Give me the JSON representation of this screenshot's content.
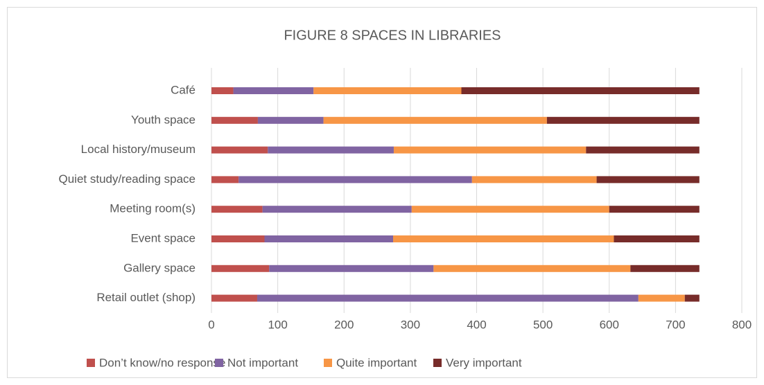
{
  "chart_data": {
    "type": "bar",
    "orientation": "horizontal",
    "stacked": true,
    "title": "FIGURE 8  SPACES IN LIBRARIES",
    "categories": [
      "Café",
      "Youth space",
      "Local history/museum",
      "Quiet study/reading space",
      "Meeting room(s)",
      "Event space",
      "Gallery space",
      "Retail outlet (shop)"
    ],
    "series": [
      {
        "name": "Don’t know/no response",
        "color": "#c0504d",
        "values": [
          33,
          70,
          85,
          41,
          77,
          80,
          87,
          69
        ]
      },
      {
        "name": "Not important",
        "color": "#8064a2",
        "values": [
          121,
          99,
          190,
          352,
          225,
          194,
          248,
          575
        ]
      },
      {
        "name": "Quite important",
        "color": "#f79646",
        "values": [
          223,
          337,
          290,
          188,
          298,
          333,
          297,
          70
        ]
      },
      {
        "name": "Very important",
        "color": "#772c2a",
        "values": [
          359,
          230,
          171,
          155,
          136,
          129,
          104,
          22
        ]
      }
    ],
    "xlim": [
      0,
      800
    ],
    "xticks": [
      0,
      100,
      200,
      300,
      400,
      500,
      600,
      700,
      800
    ],
    "grid": true,
    "legend": "bottom"
  }
}
